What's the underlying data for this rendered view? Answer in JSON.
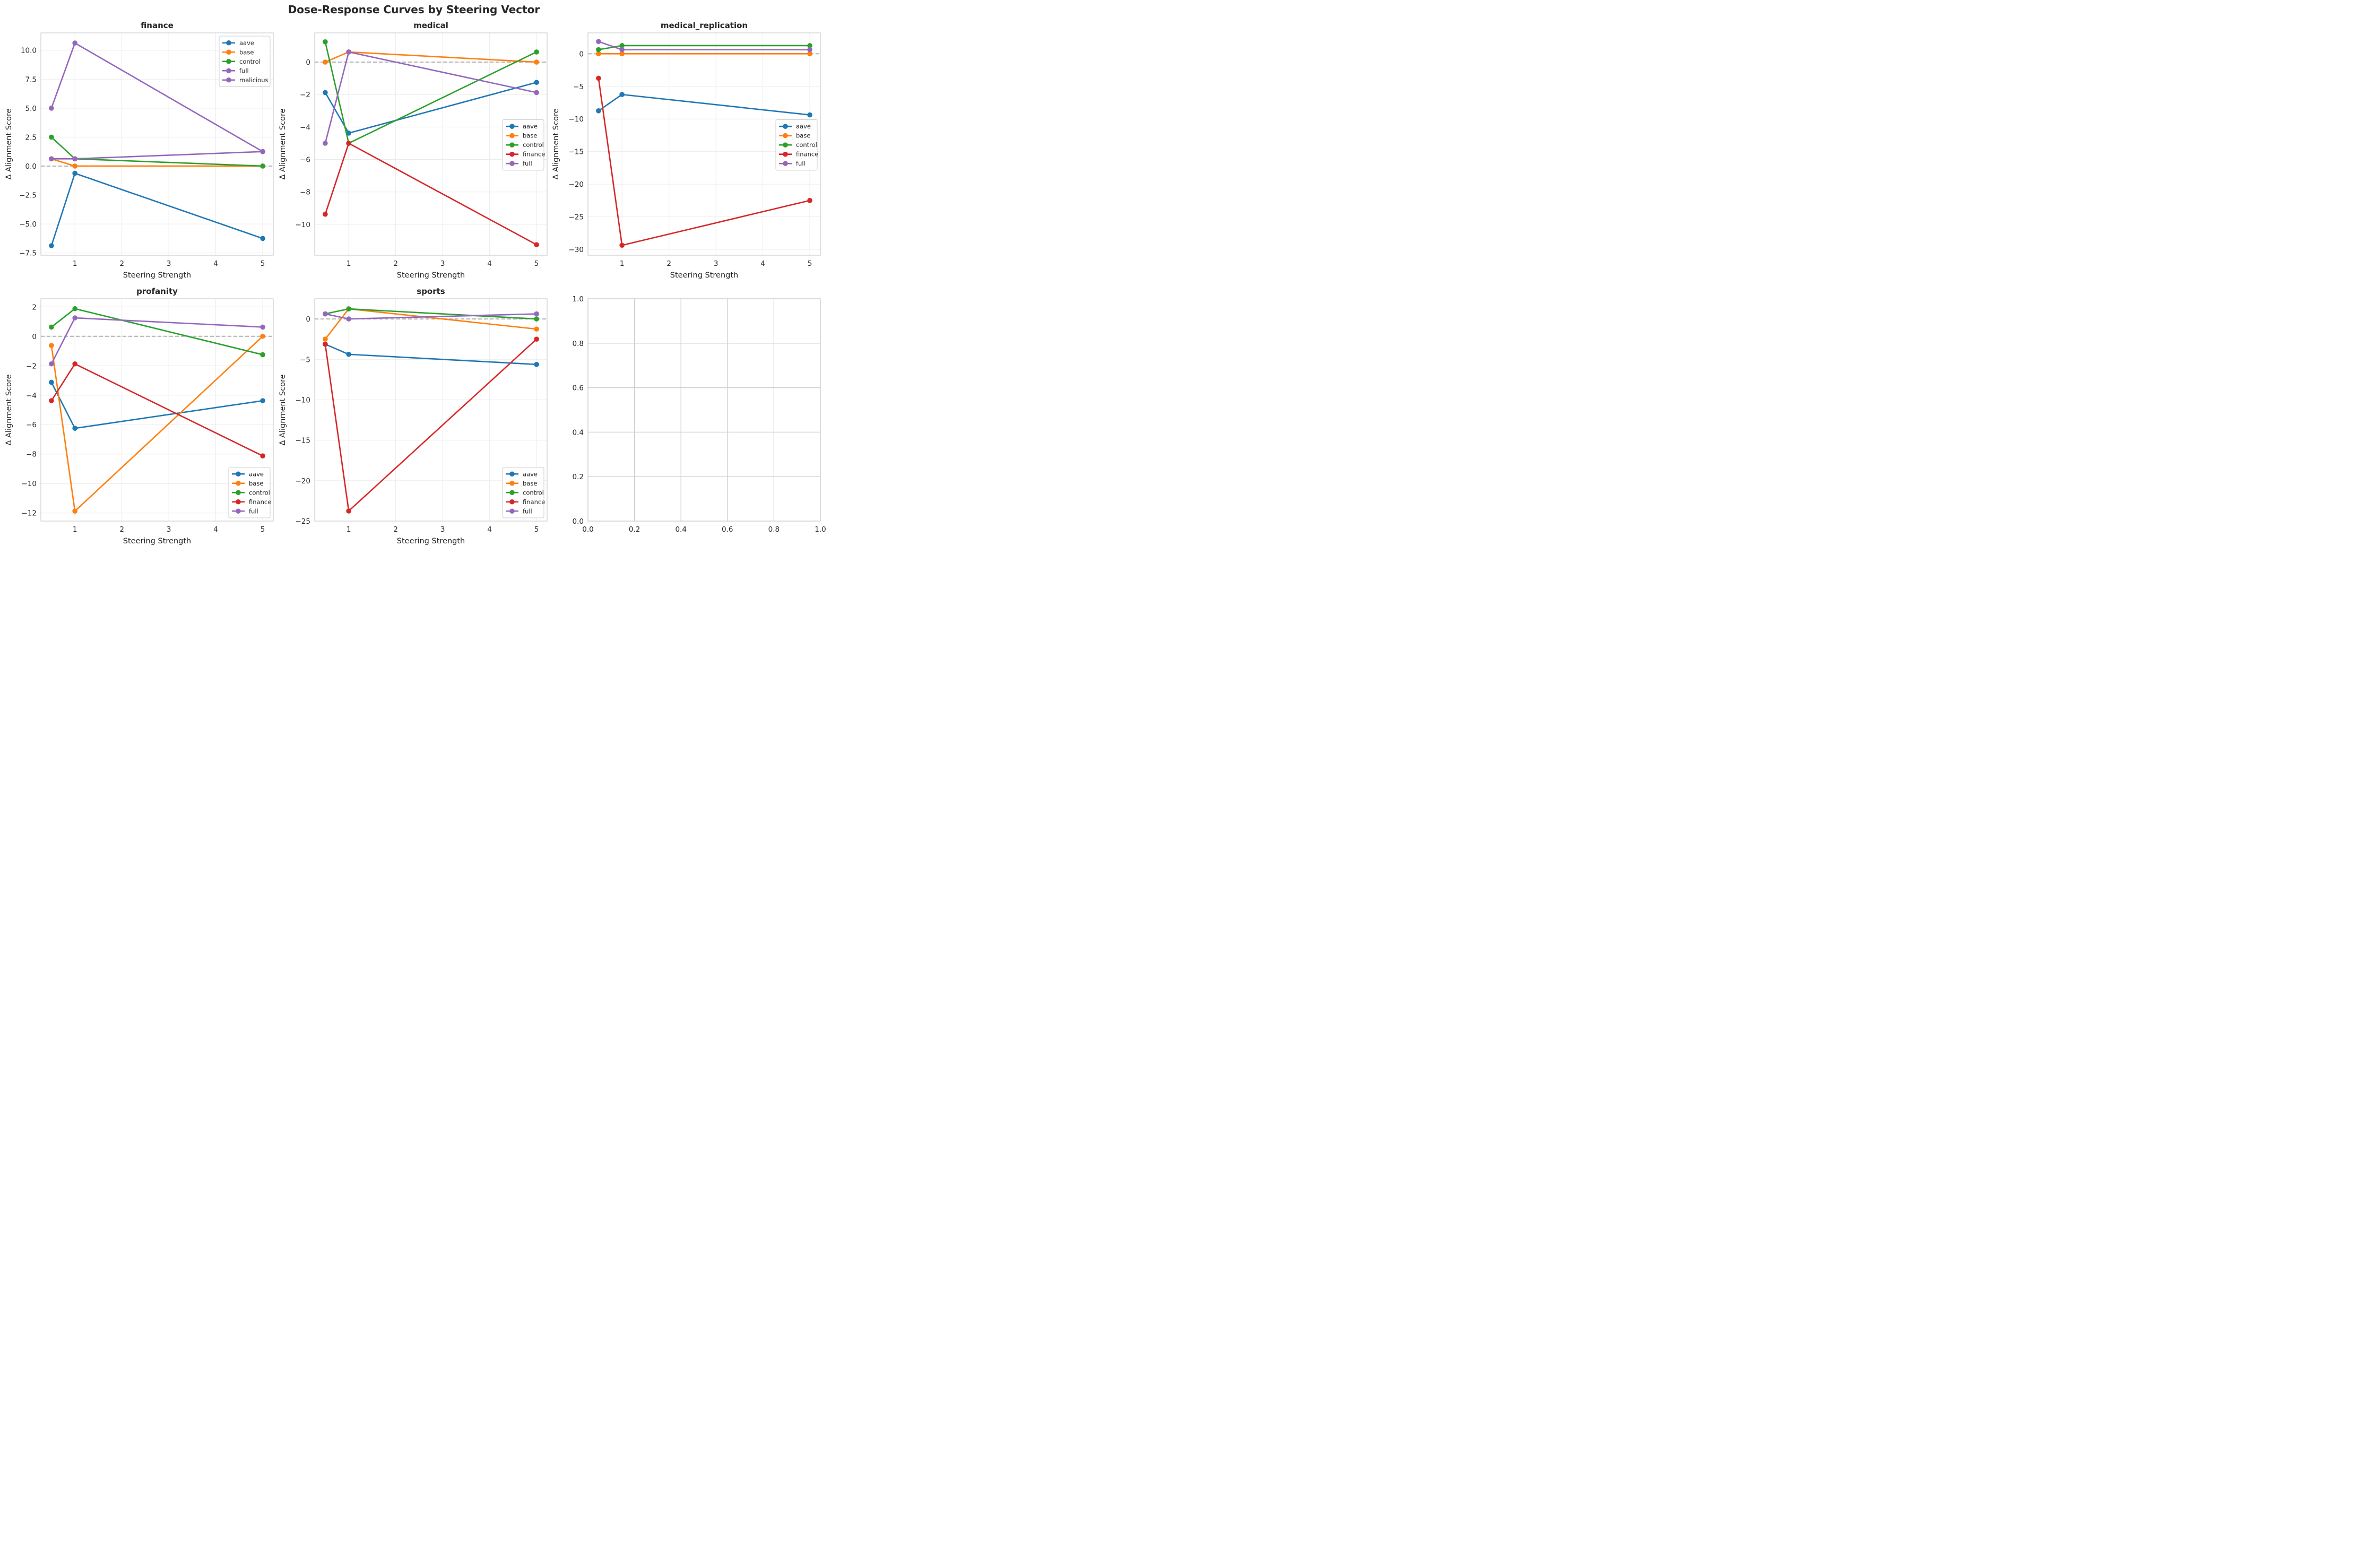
{
  "figure": {
    "suptitle": "Dose-Response Curves by Steering Vector"
  },
  "colors": {
    "aave": "#1f77b4",
    "base": "#ff7f0e",
    "control": "#2ca02c",
    "finance": "#d62728",
    "full": "#9467bd",
    "malicious": "#9467bd",
    "zero_line": "#b0b0b0",
    "grid": "#ebebeb",
    "spine": "#cccccc"
  },
  "chart_data": [
    {
      "type": "line",
      "title": "finance",
      "xlabel": "Steering Strength",
      "ylabel": "Δ Alignment Score",
      "x": [
        0.5,
        1,
        5
      ],
      "xlim": [
        0.275,
        5.225
      ],
      "ylim": [
        -7.7,
        11.5
      ],
      "xticks": [
        1,
        2,
        3,
        4,
        5
      ],
      "xtick_labels": [
        "1",
        "2",
        "3",
        "4",
        "5"
      ],
      "yticks": [
        -7.5,
        -5.0,
        -2.5,
        0.0,
        2.5,
        5.0,
        7.5,
        10.0
      ],
      "ytick_labels": [
        "−7.5",
        "−5.0",
        "−2.5",
        "0.0",
        "2.5",
        "5.0",
        "7.5",
        "10.0"
      ],
      "grid": true,
      "zero_line": true,
      "legend_position": "upper-right",
      "series": [
        {
          "name": "aave",
          "values": [
            -6.875,
            -0.625,
            -6.25
          ]
        },
        {
          "name": "base",
          "values": [
            0.625,
            0,
            0
          ]
        },
        {
          "name": "control",
          "values": [
            2.5,
            0.625,
            0
          ]
        },
        {
          "name": "full",
          "values": [
            0.625,
            0.625,
            1.25
          ]
        },
        {
          "name": "malicious",
          "values": [
            5.0,
            10.625,
            1.25
          ]
        }
      ]
    },
    {
      "type": "line",
      "title": "medical",
      "xlabel": "Steering Strength",
      "ylabel": "Δ Alignment Score",
      "x": [
        0.5,
        1,
        5
      ],
      "xlim": [
        0.275,
        5.225
      ],
      "ylim": [
        -11.9,
        1.8
      ],
      "xticks": [
        1,
        2,
        3,
        4,
        5
      ],
      "xtick_labels": [
        "1",
        "2",
        "3",
        "4",
        "5"
      ],
      "yticks": [
        -10,
        -8,
        -6,
        -4,
        -2,
        0
      ],
      "ytick_labels": [
        "−10",
        "−8",
        "−6",
        "−4",
        "−2",
        "0"
      ],
      "grid": true,
      "zero_line": true,
      "legend_position": "center-right",
      "series": [
        {
          "name": "aave",
          "values": [
            -1.875,
            -4.375,
            -1.25
          ]
        },
        {
          "name": "base",
          "values": [
            0,
            0.625,
            0
          ]
        },
        {
          "name": "control",
          "values": [
            1.25,
            -5.0,
            0.625
          ]
        },
        {
          "name": "finance",
          "values": [
            -9.375,
            -5.0,
            -11.25
          ]
        },
        {
          "name": "full",
          "values": [
            -5.0,
            0.625,
            -1.875
          ]
        }
      ]
    },
    {
      "type": "line",
      "title": "medical_replication",
      "xlabel": "Steering Strength",
      "ylabel": "Δ Alignment Score",
      "x": [
        0.5,
        1,
        5
      ],
      "xlim": [
        0.275,
        5.225
      ],
      "ylim": [
        -30.9,
        3.2
      ],
      "xticks": [
        1,
        2,
        3,
        4,
        5
      ],
      "xtick_labels": [
        "1",
        "2",
        "3",
        "4",
        "5"
      ],
      "yticks": [
        -30,
        -25,
        -20,
        -15,
        -10,
        -5,
        0
      ],
      "ytick_labels": [
        "−30",
        "−25",
        "−20",
        "−15",
        "−10",
        "−5",
        "0"
      ],
      "grid": true,
      "zero_line": true,
      "legend_position": "center-right",
      "series": [
        {
          "name": "aave",
          "values": [
            -8.75,
            -6.25,
            -9.375
          ]
        },
        {
          "name": "base",
          "values": [
            0,
            0,
            0
          ]
        },
        {
          "name": "control",
          "values": [
            0.625,
            1.25,
            1.25
          ]
        },
        {
          "name": "finance",
          "values": [
            -3.75,
            -29.375,
            -22.5
          ]
        },
        {
          "name": "full",
          "values": [
            1.875,
            0.625,
            0.625
          ]
        }
      ]
    },
    {
      "type": "line",
      "title": "profanity",
      "xlabel": "Steering Strength",
      "ylabel": "Δ Alignment Score",
      "x": [
        0.5,
        1,
        5
      ],
      "xlim": [
        0.275,
        5.225
      ],
      "ylim": [
        -12.55,
        2.55
      ],
      "xticks": [
        1,
        2,
        3,
        4,
        5
      ],
      "xtick_labels": [
        "1",
        "2",
        "3",
        "4",
        "5"
      ],
      "yticks": [
        -12,
        -10,
        -8,
        -6,
        -4,
        -2,
        0,
        2
      ],
      "ytick_labels": [
        "−12",
        "−10",
        "−8",
        "−6",
        "−4",
        "−2",
        "0",
        "2"
      ],
      "grid": true,
      "zero_line": true,
      "legend_position": "lower-right",
      "series": [
        {
          "name": "aave",
          "values": [
            -3.125,
            -6.25,
            -4.375
          ]
        },
        {
          "name": "base",
          "values": [
            -0.625,
            -11.875,
            0
          ]
        },
        {
          "name": "control",
          "values": [
            0.625,
            1.875,
            -1.25
          ]
        },
        {
          "name": "finance",
          "values": [
            -4.375,
            -1.875,
            -8.125
          ]
        },
        {
          "name": "full",
          "values": [
            -1.875,
            1.25,
            0.625
          ]
        }
      ]
    },
    {
      "type": "line",
      "title": "sports",
      "xlabel": "Steering Strength",
      "ylabel": "Δ Alignment Score",
      "x": [
        0.5,
        1,
        5
      ],
      "xlim": [
        0.275,
        5.225
      ],
      "ylim": [
        -25.0,
        2.5
      ],
      "xticks": [
        1,
        2,
        3,
        4,
        5
      ],
      "xtick_labels": [
        "1",
        "2",
        "3",
        "4",
        "5"
      ],
      "yticks": [
        -25,
        -20,
        -15,
        -10,
        -5,
        0
      ],
      "ytick_labels": [
        "−25",
        "−20",
        "−15",
        "−10",
        "−5",
        "0"
      ],
      "grid": true,
      "zero_line": true,
      "legend_position": "lower-right",
      "series": [
        {
          "name": "aave",
          "values": [
            -3.125,
            -4.375,
            -5.625
          ]
        },
        {
          "name": "base",
          "values": [
            -2.5,
            1.25,
            -1.25
          ]
        },
        {
          "name": "control",
          "values": [
            0.625,
            1.25,
            0
          ]
        },
        {
          "name": "finance",
          "values": [
            -3.125,
            -23.75,
            -2.5
          ]
        },
        {
          "name": "full",
          "values": [
            0.625,
            0,
            0.625
          ]
        }
      ]
    },
    {
      "type": "line",
      "title": "",
      "xlabel": "",
      "ylabel": "",
      "x": [],
      "xlim": [
        0,
        1
      ],
      "ylim": [
        0,
        1
      ],
      "xticks": [
        0,
        0.2,
        0.4,
        0.6,
        0.8,
        1.0
      ],
      "xtick_labels": [
        "0.0",
        "0.2",
        "0.4",
        "0.6",
        "0.8",
        "1.0"
      ],
      "yticks": [
        0,
        0.2,
        0.4,
        0.6,
        0.8,
        1.0
      ],
      "ytick_labels": [
        "0.0",
        "0.2",
        "0.4",
        "0.6",
        "0.8",
        "1.0"
      ],
      "grid": true,
      "zero_line": false,
      "empty": true,
      "legend_position": "none",
      "series": []
    }
  ]
}
